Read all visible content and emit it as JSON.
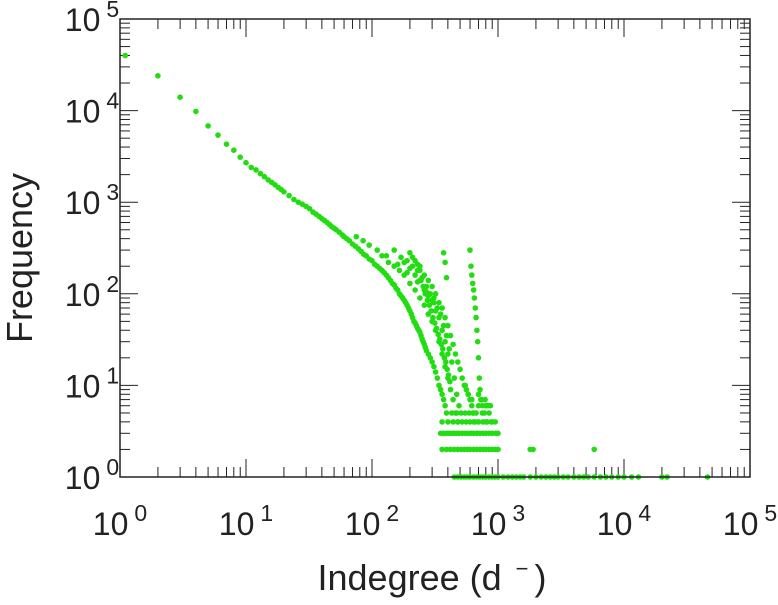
{
  "chart_data": {
    "type": "scatter",
    "title": "",
    "xlabel": "Indegree (d",
    "xlabel_sup": "−",
    "xlabel_close": ")",
    "ylabel": "Frequency",
    "xscale": "log",
    "yscale": "log",
    "xlim": [
      1,
      100000
    ],
    "ylim": [
      1,
      100000
    ],
    "grid": false,
    "legend": "none",
    "marker_color": "#22dd11",
    "x_ticks": [
      {
        "base": "10",
        "exp": "0",
        "value": 1
      },
      {
        "base": "10",
        "exp": "1",
        "value": 10
      },
      {
        "base": "10",
        "exp": "2",
        "value": 100
      },
      {
        "base": "10",
        "exp": "3",
        "value": 1000
      },
      {
        "base": "10",
        "exp": "4",
        "value": 10000
      },
      {
        "base": "10",
        "exp": "5",
        "value": 100000
      }
    ],
    "y_ticks": [
      {
        "base": "10",
        "exp": "0",
        "value": 1
      },
      {
        "base": "10",
        "exp": "1",
        "value": 10
      },
      {
        "base": "10",
        "exp": "2",
        "value": 100
      },
      {
        "base": "10",
        "exp": "3",
        "value": 1000
      },
      {
        "base": "10",
        "exp": "4",
        "value": 10000
      },
      {
        "base": "10",
        "exp": "5",
        "value": 100000
      }
    ],
    "points": [
      [
        1.1,
        40000
      ],
      [
        2,
        24000
      ],
      [
        3,
        14000
      ],
      [
        4,
        9800
      ],
      [
        5,
        6800
      ],
      [
        6,
        5400
      ],
      [
        7,
        4300
      ],
      [
        8,
        3700
      ],
      [
        9,
        3100
      ],
      [
        10,
        2700
      ],
      [
        11,
        2400
      ],
      [
        12,
        2250
      ],
      [
        13,
        2050
      ],
      [
        14,
        1900
      ],
      [
        15,
        1750
      ],
      [
        16,
        1650
      ],
      [
        17,
        1550
      ],
      [
        18,
        1450
      ],
      [
        19,
        1380
      ],
      [
        20,
        1300
      ],
      [
        22,
        1180
      ],
      [
        24,
        1070
      ],
      [
        26,
        1000
      ],
      [
        28,
        950
      ],
      [
        30,
        900
      ],
      [
        32,
        850
      ],
      [
        34,
        780
      ],
      [
        36,
        740
      ],
      [
        38,
        700
      ],
      [
        40,
        660
      ],
      [
        42,
        630
      ],
      [
        44,
        600
      ],
      [
        46,
        570
      ],
      [
        48,
        540
      ],
      [
        50,
        520
      ],
      [
        52,
        500
      ],
      [
        55,
        470
      ],
      [
        58,
        440
      ],
      [
        60,
        420
      ],
      [
        63,
        400
      ],
      [
        66,
        380
      ],
      [
        70,
        350
      ],
      [
        74,
        330
      ],
      [
        78,
        310
      ],
      [
        82,
        290
      ],
      [
        86,
        270
      ],
      [
        90,
        260
      ],
      [
        95,
        240
      ],
      [
        100,
        230
      ],
      [
        105,
        210
      ],
      [
        110,
        200
      ],
      [
        115,
        190
      ],
      [
        120,
        180
      ],
      [
        125,
        170
      ],
      [
        130,
        160
      ],
      [
        135,
        150
      ],
      [
        140,
        140
      ],
      [
        145,
        130
      ],
      [
        150,
        125
      ],
      [
        155,
        115
      ],
      [
        160,
        110
      ],
      [
        165,
        100
      ],
      [
        170,
        95
      ],
      [
        175,
        90
      ],
      [
        180,
        85
      ],
      [
        185,
        80
      ],
      [
        190,
        75
      ],
      [
        195,
        70
      ],
      [
        200,
        65
      ],
      [
        205,
        60
      ],
      [
        210,
        55
      ],
      [
        215,
        50
      ],
      [
        220,
        48
      ],
      [
        225,
        45
      ],
      [
        230,
        42
      ],
      [
        235,
        40
      ],
      [
        240,
        38
      ],
      [
        245,
        35
      ],
      [
        250,
        32
      ],
      [
        255,
        30
      ],
      [
        260,
        28
      ],
      [
        265,
        26
      ],
      [
        270,
        24
      ],
      [
        280,
        22
      ],
      [
        290,
        20
      ],
      [
        300,
        18
      ],
      [
        310,
        16
      ],
      [
        320,
        14
      ],
      [
        330,
        12
      ],
      [
        340,
        10
      ],
      [
        350,
        9
      ],
      [
        360,
        8
      ],
      [
        370,
        7
      ],
      [
        380,
        6
      ],
      [
        390,
        5
      ],
      [
        75,
        420
      ],
      [
        85,
        380
      ],
      [
        95,
        340
      ],
      [
        110,
        300
      ],
      [
        120,
        260
      ],
      [
        135,
        220
      ],
      [
        150,
        200
      ],
      [
        165,
        180
      ],
      [
        180,
        160
      ],
      [
        200,
        130
      ],
      [
        220,
        110
      ],
      [
        240,
        90
      ],
      [
        260,
        75
      ],
      [
        280,
        60
      ],
      [
        300,
        50
      ],
      [
        320,
        40
      ],
      [
        340,
        30
      ],
      [
        360,
        22
      ],
      [
        380,
        16
      ],
      [
        400,
        12
      ],
      [
        420,
        9
      ],
      [
        440,
        7
      ],
      [
        460,
        5
      ],
      [
        480,
        4
      ],
      [
        150,
        300
      ],
      [
        170,
        250
      ],
      [
        190,
        230
      ],
      [
        210,
        200
      ],
      [
        230,
        180
      ],
      [
        250,
        150
      ],
      [
        270,
        120
      ],
      [
        290,
        100
      ],
      [
        310,
        80
      ],
      [
        330,
        70
      ],
      [
        350,
        60
      ],
      [
        370,
        45
      ],
      [
        390,
        35
      ],
      [
        410,
        25
      ],
      [
        430,
        18
      ],
      [
        450,
        12
      ],
      [
        470,
        8
      ],
      [
        490,
        6
      ],
      [
        180,
        220
      ],
      [
        200,
        190
      ],
      [
        220,
        160
      ],
      [
        240,
        140
      ],
      [
        260,
        110
      ],
      [
        280,
        95
      ],
      [
        300,
        85
      ],
      [
        320,
        65
      ],
      [
        340,
        55
      ],
      [
        360,
        40
      ],
      [
        380,
        30
      ],
      [
        400,
        22
      ],
      [
        130,
        260
      ],
      [
        160,
        210
      ],
      [
        190,
        170
      ],
      [
        230,
        135
      ],
      [
        270,
        105
      ],
      [
        310,
        90
      ],
      [
        200,
        280
      ],
      [
        210,
        250
      ],
      [
        220,
        230
      ],
      [
        230,
        210
      ],
      [
        240,
        200
      ],
      [
        245,
        140
      ],
      [
        255,
        120
      ],
      [
        265,
        100
      ],
      [
        275,
        85
      ],
      [
        285,
        75
      ],
      [
        295,
        65
      ],
      [
        305,
        55
      ],
      [
        315,
        48
      ],
      [
        325,
        42
      ],
      [
        335,
        36
      ],
      [
        345,
        32
      ],
      [
        355,
        28
      ],
      [
        365,
        25
      ],
      [
        375,
        20
      ],
      [
        385,
        18
      ],
      [
        395,
        15
      ],
      [
        405,
        13
      ],
      [
        415,
        11
      ],
      [
        240,
        180
      ],
      [
        260,
        160
      ],
      [
        280,
        140
      ],
      [
        300,
        120
      ],
      [
        320,
        100
      ],
      [
        340,
        80
      ],
      [
        360,
        70
      ],
      [
        380,
        55
      ],
      [
        400,
        45
      ],
      [
        420,
        35
      ],
      [
        440,
        28
      ],
      [
        460,
        22
      ],
      [
        480,
        18
      ],
      [
        500,
        15
      ],
      [
        520,
        12
      ],
      [
        540,
        10
      ],
      [
        560,
        9
      ],
      [
        580,
        8
      ],
      [
        600,
        7
      ],
      [
        620,
        6
      ],
      [
        640,
        5
      ],
      [
        660,
        4
      ],
      [
        680,
        3
      ],
      [
        370,
        280
      ],
      [
        380,
        220
      ],
      [
        390,
        150
      ],
      [
        600,
        300
      ],
      [
        610,
        200
      ],
      [
        620,
        160
      ],
      [
        630,
        130
      ],
      [
        640,
        110
      ],
      [
        650,
        90
      ],
      [
        660,
        70
      ],
      [
        670,
        55
      ],
      [
        680,
        40
      ],
      [
        690,
        30
      ],
      [
        700,
        20
      ],
      [
        710,
        12
      ],
      [
        720,
        9
      ],
      [
        730,
        7
      ],
      [
        750,
        6
      ],
      [
        780,
        5
      ],
      [
        800,
        4
      ],
      [
        550,
        10
      ],
      [
        580,
        8
      ],
      [
        620,
        7
      ],
      [
        700,
        6
      ],
      [
        750,
        5
      ],
      [
        800,
        6
      ],
      [
        850,
        5
      ],
      [
        900,
        4
      ],
      [
        950,
        4
      ],
      [
        1000,
        3
      ],
      [
        350,
        3
      ],
      [
        370,
        3
      ],
      [
        390,
        3
      ],
      [
        410,
        3
      ],
      [
        430,
        3
      ],
      [
        450,
        3
      ],
      [
        470,
        3
      ],
      [
        490,
        3
      ],
      [
        520,
        3
      ],
      [
        550,
        3
      ],
      [
        580,
        3
      ],
      [
        610,
        3
      ],
      [
        640,
        3
      ],
      [
        680,
        3
      ],
      [
        720,
        3
      ],
      [
        760,
        3
      ],
      [
        800,
        3
      ],
      [
        850,
        3
      ],
      [
        900,
        3
      ],
      [
        960,
        3
      ],
      [
        360,
        4
      ],
      [
        400,
        4
      ],
      [
        440,
        4
      ],
      [
        480,
        4
      ],
      [
        520,
        4
      ],
      [
        560,
        4
      ],
      [
        600,
        4
      ],
      [
        640,
        4
      ],
      [
        700,
        4
      ],
      [
        760,
        4
      ],
      [
        820,
        4
      ],
      [
        880,
        4
      ],
      [
        360,
        2
      ],
      [
        390,
        2
      ],
      [
        420,
        2
      ],
      [
        450,
        2
      ],
      [
        480,
        2
      ],
      [
        510,
        2
      ],
      [
        540,
        2
      ],
      [
        570,
        2
      ],
      [
        600,
        2
      ],
      [
        640,
        2
      ],
      [
        680,
        2
      ],
      [
        720,
        2
      ],
      [
        760,
        2
      ],
      [
        800,
        2
      ],
      [
        850,
        2
      ],
      [
        900,
        2
      ],
      [
        950,
        2
      ],
      [
        1000,
        2
      ],
      [
        1800,
        2
      ],
      [
        1900,
        2
      ],
      [
        5800,
        2
      ],
      [
        430,
        5
      ],
      [
        470,
        5
      ],
      [
        510,
        5
      ],
      [
        550,
        5
      ],
      [
        590,
        5
      ],
      [
        630,
        5
      ],
      [
        670,
        5
      ],
      [
        700,
        8
      ],
      [
        740,
        7
      ],
      [
        790,
        7
      ],
      [
        830,
        6
      ],
      [
        870,
        6
      ],
      [
        450,
        1
      ],
      [
        480,
        1
      ],
      [
        510,
        1
      ],
      [
        540,
        1
      ],
      [
        570,
        1
      ],
      [
        600,
        1
      ],
      [
        640,
        1
      ],
      [
        680,
        1
      ],
      [
        720,
        1
      ],
      [
        760,
        1
      ],
      [
        800,
        1
      ],
      [
        850,
        1
      ],
      [
        900,
        1
      ],
      [
        950,
        1
      ],
      [
        1000,
        1
      ],
      [
        1100,
        1
      ],
      [
        1200,
        1
      ],
      [
        1300,
        1
      ],
      [
        1400,
        1
      ],
      [
        1500,
        1
      ],
      [
        1600,
        1
      ],
      [
        1800,
        1
      ],
      [
        2000,
        1
      ],
      [
        2200,
        1
      ],
      [
        2400,
        1
      ],
      [
        2600,
        1
      ],
      [
        2800,
        1
      ],
      [
        3000,
        1
      ],
      [
        3300,
        1
      ],
      [
        3600,
        1
      ],
      [
        4000,
        1
      ],
      [
        4400,
        1
      ],
      [
        4800,
        1
      ],
      [
        5200,
        1
      ],
      [
        5800,
        1
      ],
      [
        6500,
        1
      ],
      [
        7200,
        1
      ],
      [
        8000,
        1
      ],
      [
        9000,
        1
      ],
      [
        10000,
        1
      ],
      [
        11500,
        1
      ],
      [
        13000,
        1
      ],
      [
        20000,
        1
      ],
      [
        22000,
        1
      ],
      [
        46000,
        1
      ]
    ]
  }
}
